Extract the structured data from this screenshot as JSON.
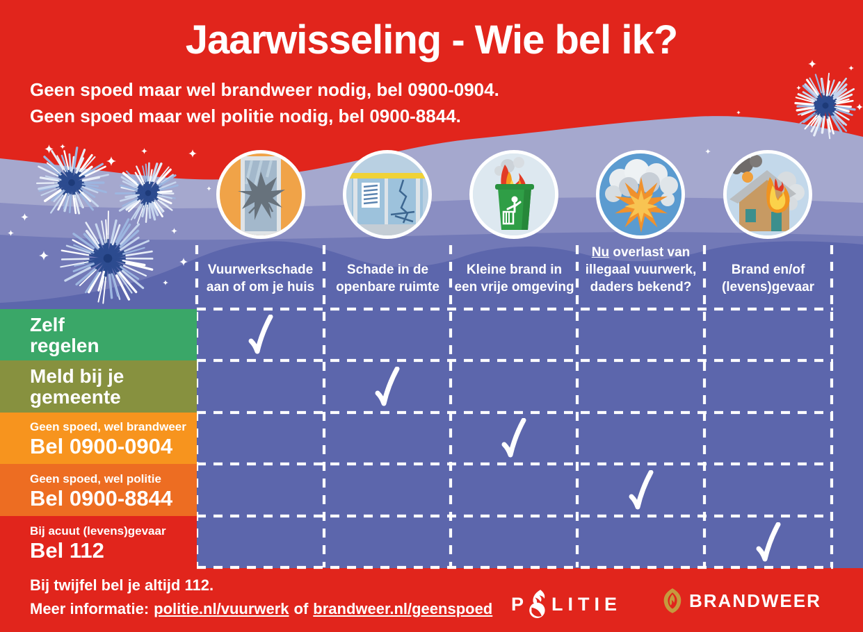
{
  "title": "Jaarwisseling - Wie bel ik?",
  "intro": {
    "line1": "Geen spoed maar wel brandweer nodig, bel 0900-0904.",
    "line2": "Geen spoed maar wel politie nodig, bel 0900-8844."
  },
  "columns": {
    "c1": {
      "icon": "broken-window",
      "line1": "Vuurwerkschade",
      "line2": "aan of om je huis"
    },
    "c2": {
      "icon": "damaged-bus-shelter",
      "line1": "Schade in de",
      "line2": "openbare ruimte"
    },
    "c3": {
      "icon": "burning-waste-container",
      "line1": "Kleine brand in",
      "line2": "een vrije omgeving"
    },
    "c4": {
      "icon": "explosion",
      "line1_underlined": "Nu",
      "line1_rest": " overlast van",
      "line2": "illegaal vuurwerk,",
      "line3": "daders bekend?"
    },
    "c5": {
      "icon": "burning-house",
      "line1": "Brand en/of",
      "line2": "(levens)gevaar"
    }
  },
  "rows": {
    "r1": {
      "line1": "Zelf",
      "line2": "regelen",
      "color": "#3aa768"
    },
    "r2": {
      "line1": "Meld bij je",
      "line2": "gemeente",
      "color": "#87913f"
    },
    "r3": {
      "small": "Geen spoed, wel brandweer",
      "big": "Bel 0900-0904",
      "color": "#f7941e"
    },
    "r4": {
      "small": "Geen spoed, wel politie",
      "big": "Bel 0900-8844",
      "color": "#ed6d22"
    },
    "r5": {
      "small": "Bij acuut (levens)gevaar",
      "big": "Bel 112",
      "color": "#e1251c"
    }
  },
  "matrix": {
    "check_symbol": "✓",
    "checked_cells": [
      {
        "row": 1,
        "col": 1
      },
      {
        "row": 2,
        "col": 2
      },
      {
        "row": 3,
        "col": 3
      },
      {
        "row": 4,
        "col": 4
      },
      {
        "row": 5,
        "col": 5
      }
    ]
  },
  "footer": {
    "line1": "Bij twijfel bel je altijd 112.",
    "line2_prefix": "Meer informatie:",
    "link_politie": "politie.nl/vuurwerk",
    "separator": "of",
    "link_brandweer": "brandweer.nl/geenspoed"
  },
  "logos": {
    "politie_p": "P",
    "politie_rest": "LITIE",
    "brandweer": "BRANDWEER"
  },
  "colors": {
    "red": "#e1251c",
    "wave_light": "#a5a8ce",
    "wave_mid": "#8a8ec2",
    "wave_dark": "#7279b7",
    "table_blue": "#5c66ac",
    "row_green": "#3aa768",
    "row_olive": "#87913f",
    "row_orange": "#f7941e",
    "row_dark_orange": "#ed6d22",
    "row_red": "#e1251c",
    "brandweer_gold": "#c59a3e",
    "grid_white": "#ffffff"
  }
}
